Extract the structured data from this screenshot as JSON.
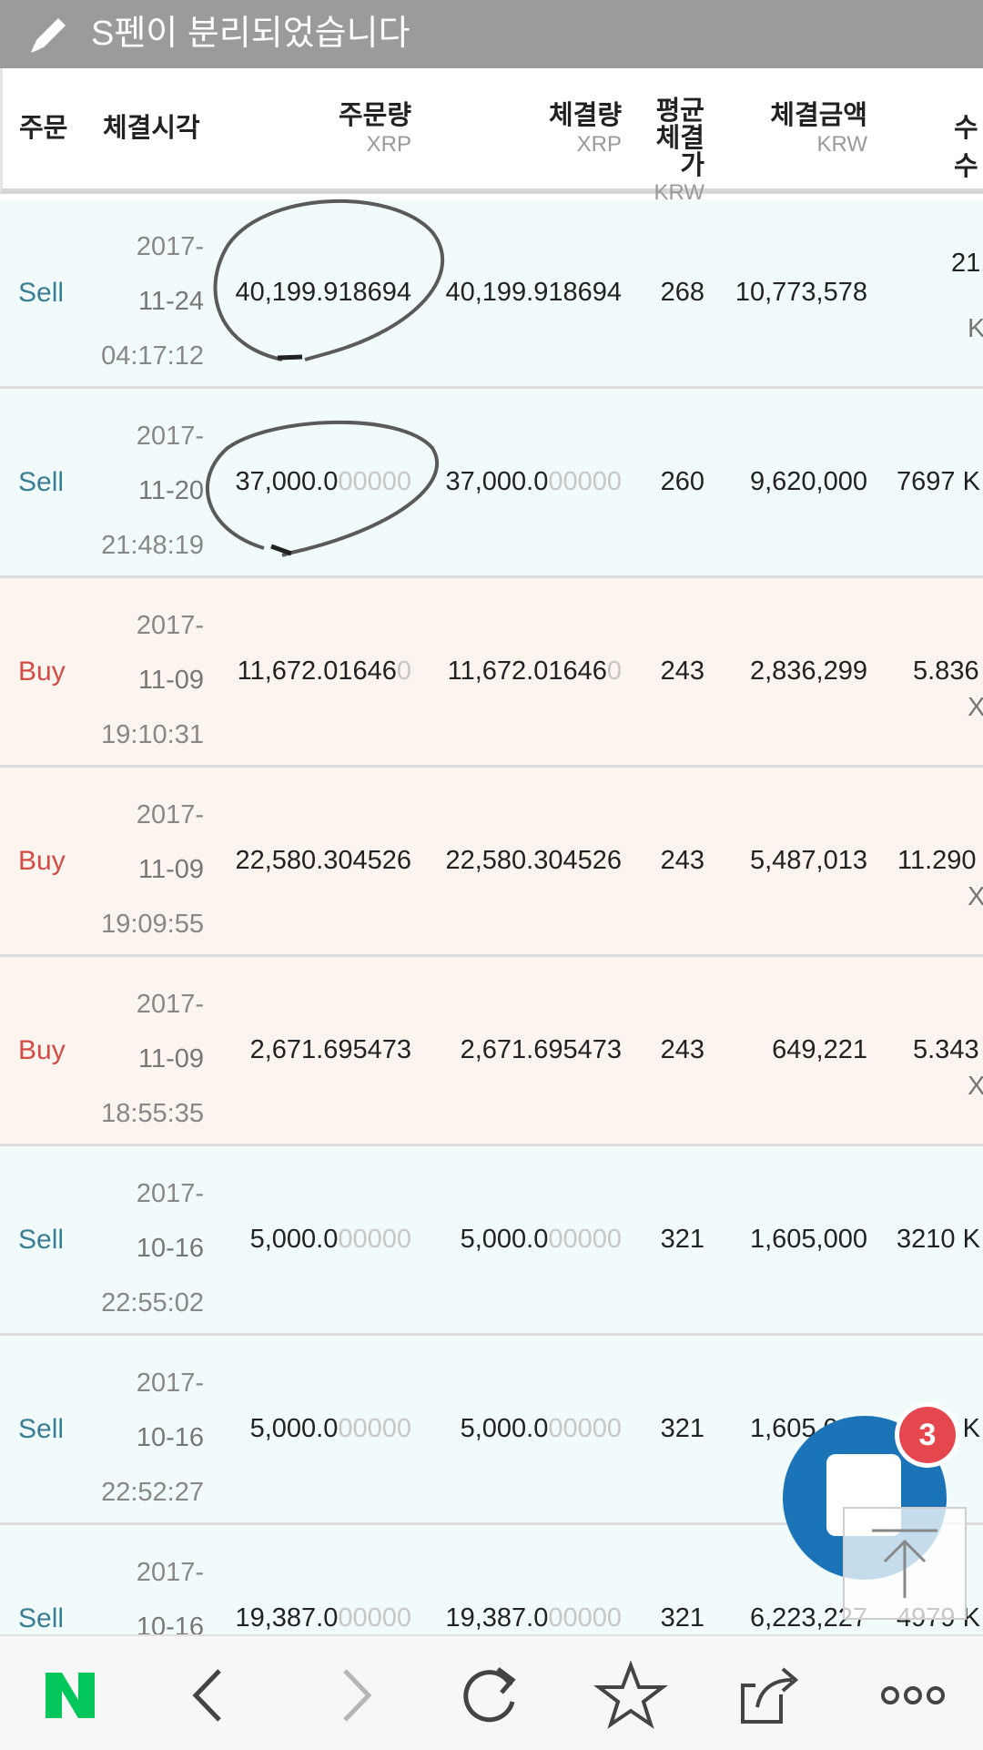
{
  "banner": {
    "text": "S펜이 분리되었습니다",
    "icon": "pen-icon"
  },
  "columns": [
    {
      "label": "주문",
      "unit": ""
    },
    {
      "label": "체결시각",
      "unit": ""
    },
    {
      "label": "주문량",
      "unit": "XRP"
    },
    {
      "label": "체결량",
      "unit": "XRP"
    },
    {
      "label": "평균\n체결\n가",
      "unit": "KRW"
    },
    {
      "label": "체결금액",
      "unit": "KRW"
    },
    {
      "label": "수수",
      "unit": ""
    }
  ],
  "rows": [
    {
      "side": "Sell",
      "date": "2017-",
      "md": "11-24",
      "time": "04:17:12",
      "qty": "40,199.918694",
      "qty_zeros": "",
      "fill": "40,199.918694",
      "fill_zeros": "",
      "avg": "268",
      "amount": "10,773,578",
      "fee_top": "21.",
      "fee_bot": "K"
    },
    {
      "side": "Sell",
      "date": "2017-",
      "md": "11-20",
      "time": "21:48:19",
      "qty": "37,000.0",
      "qty_zeros": "00000",
      "fill": "37,000.0",
      "fill_zeros": "00000",
      "avg": "260",
      "amount": "9,620,000",
      "fee": "7697 K"
    },
    {
      "side": "Buy",
      "date": "2017-",
      "md": "11-09",
      "time": "19:10:31",
      "qty": "11,672.01646",
      "qty_zeros": "0",
      "fill": "11,672.01646",
      "fill_zeros": "0",
      "avg": "243",
      "amount": "2,836,299",
      "fee": "5.836",
      "fee_bot": "X"
    },
    {
      "side": "Buy",
      "date": "2017-",
      "md": "11-09",
      "time": "19:09:55",
      "qty": "22,580.304526",
      "qty_zeros": "",
      "fill": "22,580.304526",
      "fill_zeros": "",
      "avg": "243",
      "amount": "5,487,013",
      "fee": "11.290",
      "fee_bot": "X"
    },
    {
      "side": "Buy",
      "date": "2017-",
      "md": "11-09",
      "time": "18:55:35",
      "qty": "2,671.695473",
      "qty_zeros": "",
      "fill": "2,671.695473",
      "fill_zeros": "",
      "avg": "243",
      "amount": "649,221",
      "fee": "5.343",
      "fee_bot": "X"
    },
    {
      "side": "Sell",
      "date": "2017-",
      "md": "10-16",
      "time": "22:55:02",
      "qty": "5,000.0",
      "qty_zeros": "00000",
      "fill": "5,000.0",
      "fill_zeros": "00000",
      "avg": "321",
      "amount": "1,605,000",
      "fee": "3210 K"
    },
    {
      "side": "Sell",
      "date": "2017-",
      "md": "10-16",
      "time": "22:52:27",
      "qty": "5,000.0",
      "qty_zeros": "00000",
      "fill": "5,000.0",
      "fill_zeros": "00000",
      "avg": "321",
      "amount": "1,605,000",
      "fee": "3210 K"
    },
    {
      "side": "Sell",
      "date": "2017-",
      "md": "10-16",
      "time": "",
      "qty": "19,387.0",
      "qty_zeros": "00000",
      "fill": "19,387.0",
      "fill_zeros": "00000",
      "avg": "321",
      "amount": "6,223,227",
      "fee": "4979 K"
    }
  ],
  "floating": {
    "badge_count": "3"
  },
  "navbar": {
    "items": [
      "naver-home-icon",
      "back-icon",
      "forward-icon",
      "refresh-icon",
      "bookmark-star-icon",
      "share-icon",
      "more-icon"
    ],
    "brand_color": "#03c75a"
  },
  "colors": {
    "sell_bg": "#f1fbfc",
    "buy_bg": "#fbf4ef",
    "sell_text": "#3a7e94",
    "buy_text": "#d24b45",
    "banner_bg": "#9b9b9b"
  }
}
